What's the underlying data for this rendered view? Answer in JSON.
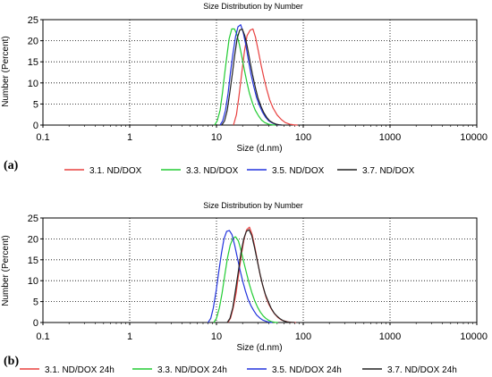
{
  "chart_data": [
    {
      "panel": "(a)",
      "type": "line",
      "title": "Size Distribution by Number",
      "xlabel": "Size (d.nm)",
      "ylabel": "Number (Percent)",
      "xscale": "log",
      "xlim": [
        0.1,
        10000
      ],
      "ylim": [
        0,
        25
      ],
      "xticks": [
        "0.1",
        "1",
        "10",
        "100",
        "1000",
        "10000"
      ],
      "yticks": [
        "0",
        "5",
        "10",
        "15",
        "20",
        "25"
      ],
      "grid": true,
      "legend_position": "bottom",
      "series": [
        {
          "name": "3.1. ND/DOX",
          "color": "#e8403f",
          "x": [
            15.7,
            17,
            18.2,
            19.6,
            21,
            22.5,
            24.4,
            26.3,
            28.2,
            30.4,
            32.7,
            35.2,
            38,
            41,
            45,
            50,
            56,
            62,
            70,
            78,
            86
          ],
          "y": [
            0,
            2.5,
            7,
            12.5,
            17.5,
            21.2,
            22.5,
            22.8,
            20.8,
            17.5,
            14.2,
            11.2,
            8.4,
            6,
            4,
            2.4,
            1.3,
            0.6,
            0.2,
            0.05,
            0
          ]
        },
        {
          "name": "3.3. ND/DOX",
          "color": "#22cc33",
          "x": [
            9.5,
            10.2,
            11,
            11.7,
            12.4,
            13.2,
            14,
            15,
            16.1,
            17.2,
            18.4,
            19.7,
            21,
            22.5,
            24,
            26,
            28,
            30.5,
            33,
            36,
            40,
            44,
            48
          ],
          "y": [
            0,
            1,
            3.5,
            7.5,
            12,
            16.5,
            20.5,
            22.8,
            22.8,
            21.5,
            19,
            16,
            13,
            10,
            7.5,
            5.2,
            3.5,
            2.2,
            1.2,
            0.6,
            0.2,
            0.05,
            0
          ]
        },
        {
          "name": "3.5. ND/DOX",
          "color": "#2233dd",
          "x": [
            11,
            11.8,
            12.7,
            13.6,
            14.5,
            15.5,
            16.6,
            17.7,
            19,
            20.3,
            21.8,
            23.3,
            25,
            27,
            29,
            31.5,
            34,
            37,
            40,
            44,
            48,
            52,
            56
          ],
          "y": [
            0,
            1,
            3.5,
            7.5,
            12.5,
            17,
            21,
            23.3,
            23.8,
            22,
            19,
            15.5,
            12,
            9,
            6.5,
            4.5,
            3,
            1.8,
            1,
            0.5,
            0.2,
            0.05,
            0
          ]
        },
        {
          "name": "3.7. ND/DOX",
          "color": "#222222",
          "x": [
            11.5,
            12.4,
            13.3,
            14.2,
            15.2,
            16.2,
            17.3,
            18.5,
            19.8,
            21.2,
            22.7,
            24.3,
            26,
            28,
            30,
            32.5,
            35,
            38,
            41,
            45,
            49,
            53,
            57
          ],
          "y": [
            0,
            1,
            3.5,
            7.5,
            12,
            16.5,
            20.5,
            22.5,
            22.8,
            21.2,
            18.5,
            15.2,
            12,
            9,
            6.5,
            4.5,
            3,
            1.8,
            1,
            0.5,
            0.2,
            0.05,
            0
          ]
        }
      ]
    },
    {
      "panel": "(b)",
      "type": "line",
      "title": "Size Distribution by Number",
      "xlabel": "Size (d.nm)",
      "ylabel": "Number (Percent)",
      "xscale": "log",
      "xlim": [
        0.1,
        10000
      ],
      "ylim": [
        0,
        25
      ],
      "xticks": [
        "0.1",
        "1",
        "10",
        "100",
        "1000",
        "10000"
      ],
      "yticks": [
        "0",
        "5",
        "10",
        "15",
        "20",
        "25"
      ],
      "grid": true,
      "legend_position": "bottom",
      "series": [
        {
          "name": "3.1. ND/DOX 24h",
          "color": "#e8403f",
          "x": [
            13.5,
            14.5,
            15.6,
            16.8,
            18,
            19.3,
            20.8,
            22.3,
            24,
            25.8,
            27.7,
            29.8,
            32,
            34.5,
            37,
            40,
            43.5,
            47,
            51,
            56,
            62,
            68,
            75,
            82
          ],
          "y": [
            0,
            1,
            3.5,
            7,
            11.5,
            16,
            20,
            22.2,
            22.8,
            21,
            18,
            14.5,
            11.2,
            8.5,
            6.2,
            4.4,
            3,
            2,
            1.2,
            0.6,
            0.3,
            0.1,
            0.03,
            0
          ]
        },
        {
          "name": "3.3. ND/DOX 24h",
          "color": "#22cc33",
          "x": [
            9.3,
            10,
            10.8,
            11.6,
            12.5,
            13.4,
            14.4,
            15.5,
            16.6,
            17.9,
            19.2,
            20.6,
            22.2,
            23.9,
            25.7,
            27.6,
            29.7,
            32,
            34.5,
            37,
            40,
            43,
            47,
            51
          ],
          "y": [
            0,
            1,
            3.5,
            7,
            11.5,
            15.5,
            18.5,
            20.2,
            20.5,
            19.5,
            17.2,
            14.5,
            11.8,
            9.2,
            7,
            5.2,
            3.7,
            2.5,
            1.6,
            1,
            0.5,
            0.2,
            0.05,
            0
          ]
        },
        {
          "name": "3.5. ND/DOX 24h",
          "color": "#2233dd",
          "x": [
            8,
            8.6,
            9.2,
            9.9,
            10.6,
            11.4,
            12.2,
            13.1,
            14.1,
            15.1,
            16.2,
            17.4,
            18.7,
            20.1,
            21.6,
            23.2,
            25,
            27,
            29,
            31.5,
            34,
            37,
            40,
            44
          ],
          "y": [
            0,
            1,
            3.5,
            7.5,
            12,
            16.5,
            20,
            21.8,
            22,
            21,
            18.5,
            15.5,
            12.5,
            9.8,
            7.5,
            5.5,
            4,
            2.8,
            1.8,
            1.1,
            0.6,
            0.3,
            0.1,
            0
          ]
        },
        {
          "name": "3.7. ND/DOX 24h",
          "color": "#222222",
          "x": [
            13.3,
            14.3,
            15.4,
            16.5,
            17.8,
            19.1,
            20.6,
            22.1,
            23.7,
            25.5,
            27.4,
            29.5,
            31.7,
            34,
            36.5,
            39.5,
            42.5,
            46,
            50,
            54,
            59,
            65,
            72,
            80
          ],
          "y": [
            0,
            1,
            3.5,
            7.5,
            12,
            16.5,
            20,
            21.8,
            22.2,
            20.8,
            18,
            14.8,
            11.7,
            9,
            6.8,
            5,
            3.5,
            2.3,
            1.5,
            0.9,
            0.4,
            0.15,
            0.05,
            0
          ]
        }
      ]
    }
  ]
}
